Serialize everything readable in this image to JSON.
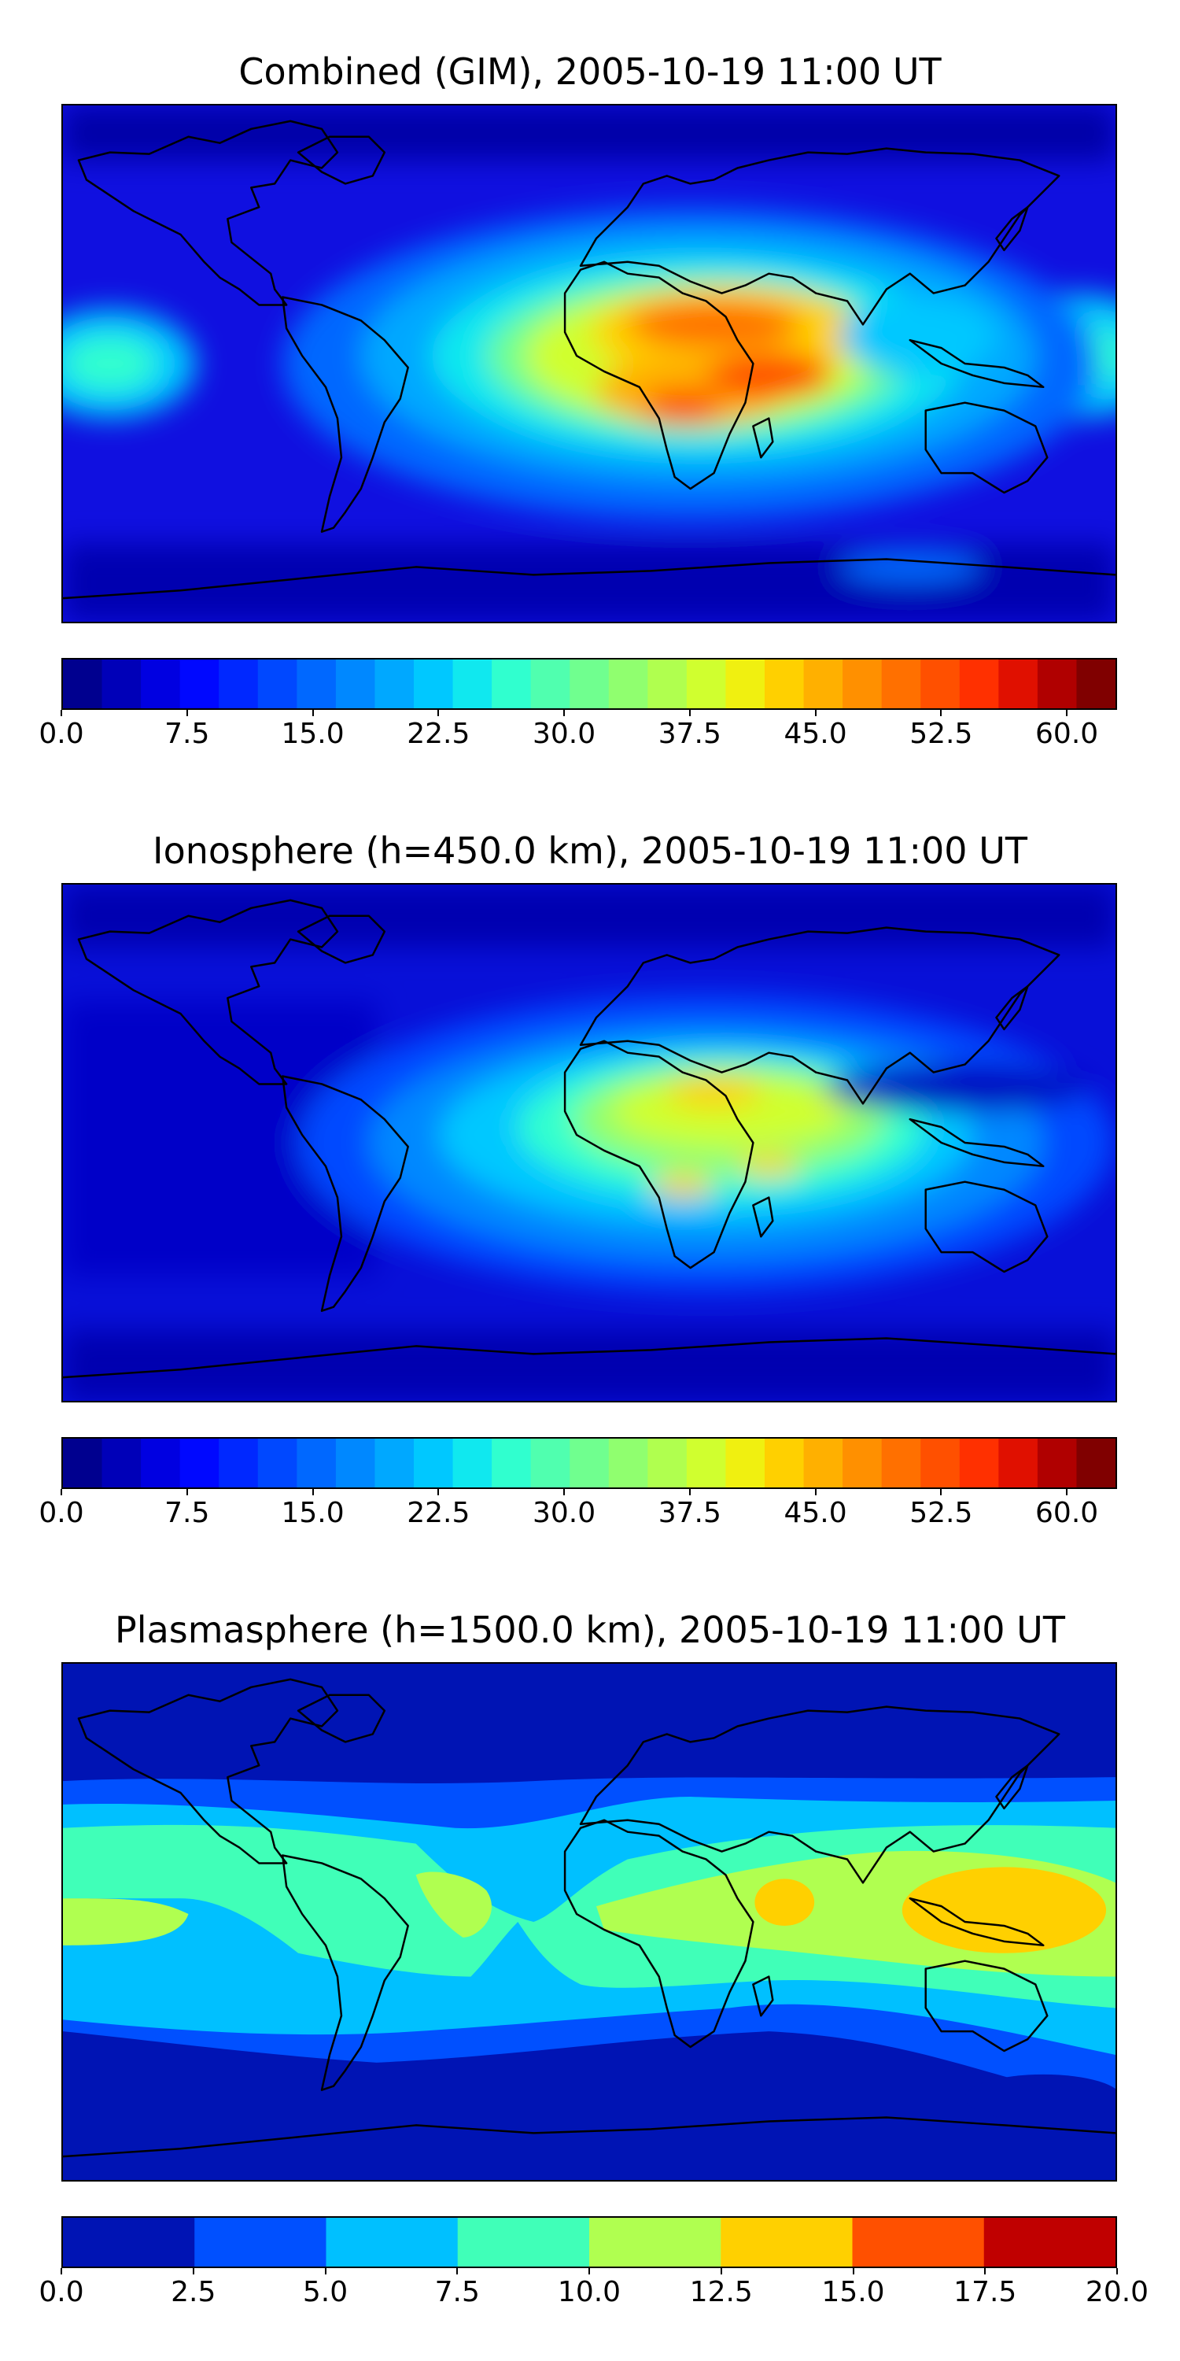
{
  "panels": [
    {
      "title": "Combined (GIM), 2005-10-19 11:00 UT",
      "colorbar": {
        "ticks": [
          "0.0",
          "7.5",
          "15.0",
          "22.5",
          "30.0",
          "37.5",
          "45.0",
          "52.5",
          "60.0"
        ],
        "min": 0.0,
        "max": 63.0,
        "levels": 26,
        "colors": [
          "#00008f",
          "#0000b8",
          "#0000e1",
          "#0008ff",
          "#0028ff",
          "#0048ff",
          "#0068ff",
          "#0088ff",
          "#00a8ff",
          "#00c8ff",
          "#10e8ef",
          "#30ffcf",
          "#50ffaf",
          "#70ff8f",
          "#90ff6f",
          "#b0ff4f",
          "#d0ff2f",
          "#f0f010",
          "#ffd000",
          "#ffb000",
          "#ff9000",
          "#ff7000",
          "#ff5000",
          "#ff3000",
          "#e01000",
          "#b00000",
          "#800000"
        ]
      }
    },
    {
      "title": "Ionosphere  (h=450.0 km), 2005-10-19 11:00 UT",
      "colorbar": {
        "ticks": [
          "0.0",
          "7.5",
          "15.0",
          "22.5",
          "30.0",
          "37.5",
          "45.0",
          "52.5",
          "60.0"
        ],
        "min": 0.0,
        "max": 63.0,
        "levels": 26,
        "colors": [
          "#00008f",
          "#0000b8",
          "#0000e1",
          "#0008ff",
          "#0028ff",
          "#0048ff",
          "#0068ff",
          "#0088ff",
          "#00a8ff",
          "#00c8ff",
          "#10e8ef",
          "#30ffcf",
          "#50ffaf",
          "#70ff8f",
          "#90ff6f",
          "#b0ff4f",
          "#d0ff2f",
          "#f0f010",
          "#ffd000",
          "#ffb000",
          "#ff9000",
          "#ff7000",
          "#ff5000",
          "#ff3000",
          "#e01000",
          "#b00000",
          "#800000"
        ]
      }
    },
    {
      "title": "Plasmasphere (h=1500.0 km), 2005-10-19 11:00 UT",
      "colorbar": {
        "ticks": [
          "0.0",
          "2.5",
          "5.0",
          "7.5",
          "10.0",
          "12.5",
          "15.0",
          "17.5",
          "20.0"
        ],
        "min": 0.0,
        "max": 20.0,
        "levels": 8,
        "colors": [
          "#0014b4",
          "#0050ff",
          "#00c0ff",
          "#40ffb8",
          "#b0ff50",
          "#ffd000",
          "#ff5000",
          "#c00000"
        ]
      }
    }
  ]
}
